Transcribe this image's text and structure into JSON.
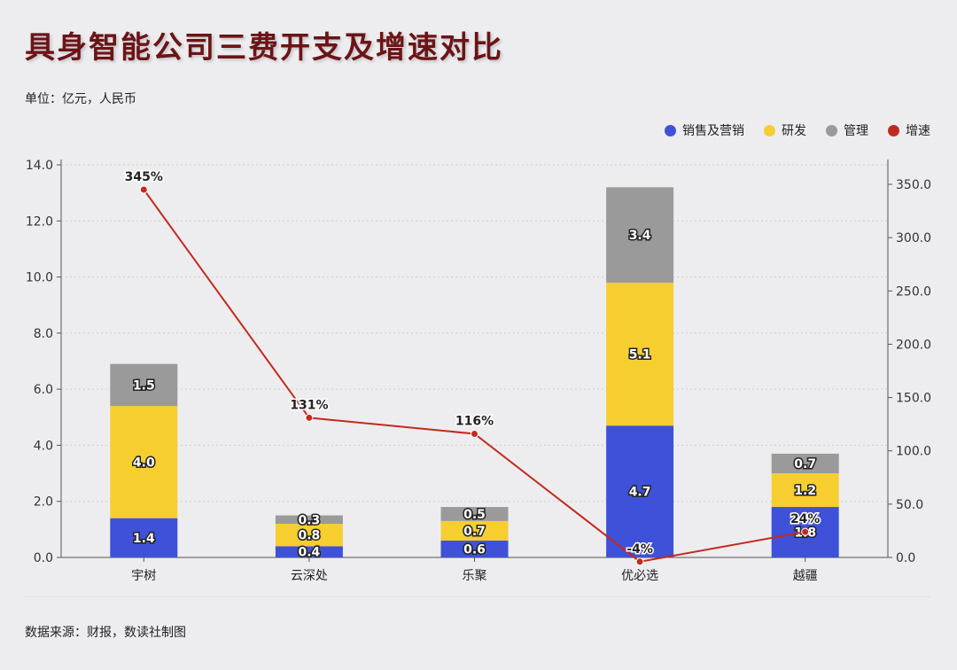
{
  "title": "具身智能公司三费开支及增速对比",
  "unit": "单位：亿元，人民币",
  "source": "数据来源：财报，数读社制图",
  "colors": {
    "sales": "#3f51d8",
    "rd": "#f6ce30",
    "admin": "#9a9a9a",
    "growth": "#c42a1c"
  },
  "chart_data": {
    "type": "bar",
    "stacked": true,
    "categories": [
      "宇树",
      "云深处",
      "乐聚",
      "优必选",
      "越疆"
    ],
    "series": [
      {
        "name": "销售及营销",
        "key": "sales",
        "values": [
          1.4,
          0.4,
          0.6,
          4.7,
          1.8
        ]
      },
      {
        "name": "研发",
        "key": "rd",
        "values": [
          4.0,
          0.8,
          0.7,
          5.1,
          1.2
        ]
      },
      {
        "name": "管理",
        "key": "admin",
        "values": [
          1.5,
          0.3,
          0.5,
          3.4,
          0.7
        ]
      }
    ],
    "line_series": {
      "name": "增速",
      "values": [
        345,
        131,
        116,
        -4,
        24
      ],
      "labels": [
        "345%",
        "131%",
        "116%",
        "-4%",
        "24%"
      ],
      "axis": "right"
    },
    "y_left": {
      "min": 0,
      "max": 14,
      "ticks": [
        "0.0",
        "2.0",
        "4.0",
        "6.0",
        "8.0",
        "10.0",
        "12.0",
        "14.0"
      ]
    },
    "y_right": {
      "min": 0,
      "max": 350,
      "ticks": [
        "0.0",
        "50.0",
        "100.0",
        "150.0",
        "200.0",
        "250.0",
        "300.0",
        "350.0"
      ]
    },
    "legend_position": "top-right",
    "grid": "dotted-horizontal"
  }
}
